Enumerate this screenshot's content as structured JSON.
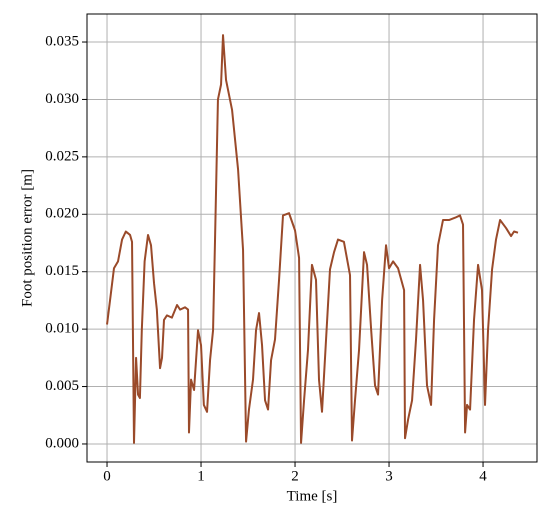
{
  "chart_data": {
    "type": "line",
    "xlabel": "Time [s]",
    "ylabel": "Foot position error [m]",
    "x": [
      0,
      0.032,
      0.074,
      0.117,
      0.16,
      0.2,
      0.245,
      0.266,
      0.287,
      0.309,
      0.33,
      0.35,
      0.37,
      0.4,
      0.436,
      0.468,
      0.5,
      0.53,
      0.564,
      0.585,
      0.606,
      0.638,
      0.69,
      0.745,
      0.777,
      0.83,
      0.862,
      0.872,
      0.894,
      0.926,
      0.968,
      1.0,
      1.03,
      1.064,
      1.096,
      1.128,
      1.149,
      1.18,
      1.213,
      1.234,
      1.266,
      1.33,
      1.394,
      1.447,
      1.479,
      1.51,
      1.553,
      1.585,
      1.617,
      1.649,
      1.681,
      1.713,
      1.745,
      1.787,
      1.83,
      1.872,
      1.936,
      2.0,
      2.043,
      2.064,
      2.096,
      2.138,
      2.18,
      2.223,
      2.255,
      2.287,
      2.33,
      2.372,
      2.415,
      2.457,
      2.52,
      2.585,
      2.606,
      2.638,
      2.681,
      2.734,
      2.766,
      2.81,
      2.851,
      2.883,
      2.926,
      2.968,
      3.0,
      3.043,
      3.096,
      3.16,
      3.17,
      3.202,
      3.245,
      3.287,
      3.33,
      3.362,
      3.404,
      3.447,
      3.479,
      3.521,
      3.574,
      3.638,
      3.702,
      3.755,
      3.787,
      3.809,
      3.83,
      3.862,
      3.904,
      3.947,
      3.989,
      4.021,
      4.053,
      4.096,
      4.138,
      4.181,
      4.245,
      4.298,
      4.33,
      4.372
    ],
    "series": [
      {
        "color": "#9a4a2a",
        "values": [
          0.0104,
          0.0125,
          0.0153,
          0.0159,
          0.0178,
          0.0185,
          0.0182,
          0.0176,
          0.0001,
          0.0075,
          0.0043,
          0.004,
          0.0099,
          0.0159,
          0.0182,
          0.0173,
          0.014,
          0.0117,
          0.0066,
          0.0075,
          0.0108,
          0.0112,
          0.011,
          0.0121,
          0.0117,
          0.0119,
          0.0117,
          0.001,
          0.0056,
          0.0047,
          0.0099,
          0.0086,
          0.0034,
          0.0028,
          0.0073,
          0.0099,
          0.0178,
          0.03,
          0.0313,
          0.0356,
          0.0317,
          0.0291,
          0.0239,
          0.0169,
          0.0002,
          0.003,
          0.0056,
          0.0099,
          0.0114,
          0.0086,
          0.0038,
          0.003,
          0.0073,
          0.0091,
          0.0143,
          0.0199,
          0.0201,
          0.0186,
          0.0162,
          0.0001,
          0.0038,
          0.0082,
          0.0156,
          0.0143,
          0.0056,
          0.0028,
          0.0091,
          0.0152,
          0.0167,
          0.0178,
          0.0176,
          0.0147,
          0.0003,
          0.0038,
          0.0082,
          0.0167,
          0.0156,
          0.0099,
          0.0051,
          0.0043,
          0.0125,
          0.0173,
          0.0153,
          0.0159,
          0.0153,
          0.0134,
          0.0005,
          0.0021,
          0.0038,
          0.0091,
          0.0156,
          0.0125,
          0.0051,
          0.0034,
          0.0108,
          0.0173,
          0.0195,
          0.0195,
          0.0197,
          0.0199,
          0.0191,
          0.001,
          0.0034,
          0.003,
          0.0108,
          0.0156,
          0.0134,
          0.0034,
          0.0099,
          0.0152,
          0.0178,
          0.0195,
          0.0188,
          0.0181,
          0.0185,
          0.0184
        ]
      }
    ],
    "xlim": [
      -0.213,
      4.574
    ],
    "xticks": [
      0,
      1,
      2,
      3,
      4
    ],
    "ylim": [
      -0.00157,
      0.03744
    ],
    "yticks": [
      {
        "value": 0,
        "label": "0.000"
      },
      {
        "value": 0.005,
        "label": "0.005"
      },
      {
        "value": 0.01,
        "label": "0.010"
      },
      {
        "value": 0.015,
        "label": "0.015"
      },
      {
        "value": 0.02,
        "label": "0.020"
      },
      {
        "value": 0.025,
        "label": "0.025"
      },
      {
        "value": 0.03,
        "label": "0.030"
      },
      {
        "value": 0.035,
        "label": "0.035"
      }
    ],
    "grid": true
  }
}
